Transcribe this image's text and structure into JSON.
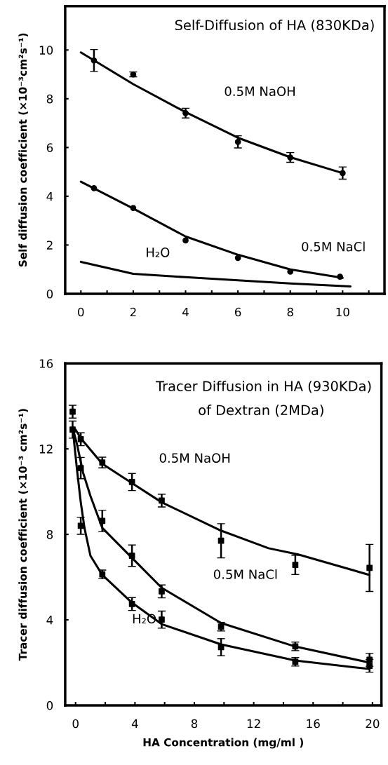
{
  "chart_data": [
    {
      "type": "scatter",
      "title": "Self-Diffusion of HA (830KDa)",
      "ylabel": "Self diffusion coefficient (×10⁻³cm²s⁻¹)",
      "xlim": [
        -0.6,
        11.6
      ],
      "ylim": [
        0,
        11.8
      ],
      "xticks": [
        0,
        {
          "value": 1,
          "label": null
        },
        2,
        {
          "value": 3,
          "label": null
        },
        4,
        {
          "value": 5,
          "label": null
        },
        6,
        {
          "value": 7,
          "label": null
        },
        8,
        {
          "value": 9,
          "label": null
        },
        10,
        {
          "value": 11,
          "label": null
        }
      ],
      "yticks": [
        0,
        2,
        4,
        6,
        8,
        10
      ],
      "grid": false,
      "legend": false,
      "series": [
        {
          "marker": "circle",
          "color": "#000000",
          "x": [
            0.5,
            2,
            4,
            6,
            8,
            10
          ],
          "values": [
            9.57,
            9.0,
            7.41,
            6.23,
            5.59,
            4.95
          ],
          "errors": [
            0.45,
            0.1,
            0.2,
            0.25,
            0.2,
            0.25
          ]
        },
        {
          "type": "line",
          "color": "#000000",
          "x": [
            0,
            2,
            4,
            6,
            8,
            10
          ],
          "values": [
            9.9,
            8.6,
            7.45,
            6.4,
            5.6,
            4.95
          ]
        },
        {
          "marker": "circle",
          "color": "#000000",
          "x": [
            0.5,
            2,
            4,
            6,
            8,
            9.9
          ],
          "values": [
            4.33,
            3.52,
            2.19,
            1.47,
            0.91,
            0.7
          ]
        },
        {
          "type": "line",
          "color": "#000000",
          "x": [
            0,
            2,
            4,
            6,
            8,
            10
          ],
          "values": [
            4.6,
            3.5,
            2.35,
            1.6,
            1.0,
            0.65
          ]
        },
        {
          "type": "line",
          "color": "#000000",
          "x": [
            0,
            2,
            4,
            6,
            8,
            10.3
          ],
          "values": [
            1.31,
            0.82,
            0.68,
            0.55,
            0.42,
            0.3
          ]
        }
      ],
      "annotations": [
        "0.5M NaOH",
        "0.5M NaCl",
        "H₂O"
      ]
    },
    {
      "type": "scatter",
      "title": "Tracer Diffusion in HA (930KDa)",
      "subtitle": "of Dextran (2MDa)",
      "xlabel": "HA Concentration (mg/ml )",
      "ylabel": "Tracer diffusion coefficient (×10⁻³ cm²s⁻¹)",
      "xlim": [
        -0.7,
        20.6
      ],
      "ylim": [
        0,
        16
      ],
      "xticks": [
        0,
        {
          "value": 2,
          "label": null
        },
        4,
        {
          "value": 6,
          "label": null
        },
        8,
        {
          "value": 10,
          "label": null
        },
        12,
        {
          "value": 14,
          "label": null
        },
        16,
        {
          "value": 18,
          "label": null
        },
        20
      ],
      "yticks": [
        0,
        4,
        8,
        12,
        16
      ],
      "grid": false,
      "legend": false,
      "series": [
        {
          "marker": "square",
          "color": "#000000",
          "x": [
            -0.2,
            0.35,
            1.8,
            3.8,
            5.8,
            9.8,
            14.8,
            19.8
          ],
          "values": [
            13.74,
            12.45,
            11.36,
            10.45,
            9.58,
            7.7,
            6.57,
            6.43
          ],
          "errors": [
            0.3,
            0.3,
            0.25,
            0.4,
            0.3,
            0.8,
            0.45,
            1.1
          ]
        },
        {
          "type": "line",
          "color": "#000000",
          "x": [
            0,
            0.35,
            1.8,
            3.8,
            5.8,
            9.7,
            13,
            15,
            19.8
          ],
          "values": [
            12.9,
            12.5,
            11.3,
            10.4,
            9.5,
            8.2,
            7.35,
            7.06,
            6.1
          ]
        },
        {
          "marker": "square",
          "color": "#000000",
          "x": [
            -0.2,
            0.35,
            1.8,
            3.8,
            5.8,
            9.8,
            14.8,
            19.8
          ],
          "values": [
            12.9,
            11.1,
            8.63,
            7.0,
            5.33,
            3.68,
            2.76,
            2.13
          ],
          "errors": [
            0.4,
            0.5,
            0.5,
            0.5,
            0.3,
            0.2,
            0.2,
            0.3
          ]
        },
        {
          "type": "line",
          "color": "#000000",
          "x": [
            -0.2,
            0.1,
            0.5,
            1.0,
            1.8,
            3.8,
            5.8,
            9.8,
            14.8,
            19.8
          ],
          "values": [
            13.0,
            12.2,
            10.9,
            9.8,
            8.3,
            6.9,
            5.5,
            3.85,
            2.75,
            2.0
          ]
        },
        {
          "marker": "square",
          "color": "#000000",
          "x": [
            0.35,
            1.8,
            3.8,
            5.8,
            9.8,
            14.8,
            19.8
          ],
          "values": [
            8.4,
            6.13,
            4.74,
            4.01,
            2.72,
            2.04,
            1.85
          ],
          "errors": [
            0.4,
            0.2,
            0.3,
            0.4,
            0.4,
            0.2,
            0.3
          ]
        },
        {
          "type": "line",
          "color": "#000000",
          "x": [
            -0.2,
            0.1,
            0.35,
            0.6,
            1.0,
            1.8,
            3.8,
            5.8,
            9.8,
            14.8,
            19.8
          ],
          "values": [
            13.0,
            11.0,
            9.5,
            8.3,
            7.0,
            6.1,
            4.8,
            3.8,
            2.85,
            2.1,
            1.7
          ]
        }
      ],
      "annotations": [
        "0.5M NaOH",
        "0.5M NaCl",
        "H₂O"
      ]
    }
  ]
}
